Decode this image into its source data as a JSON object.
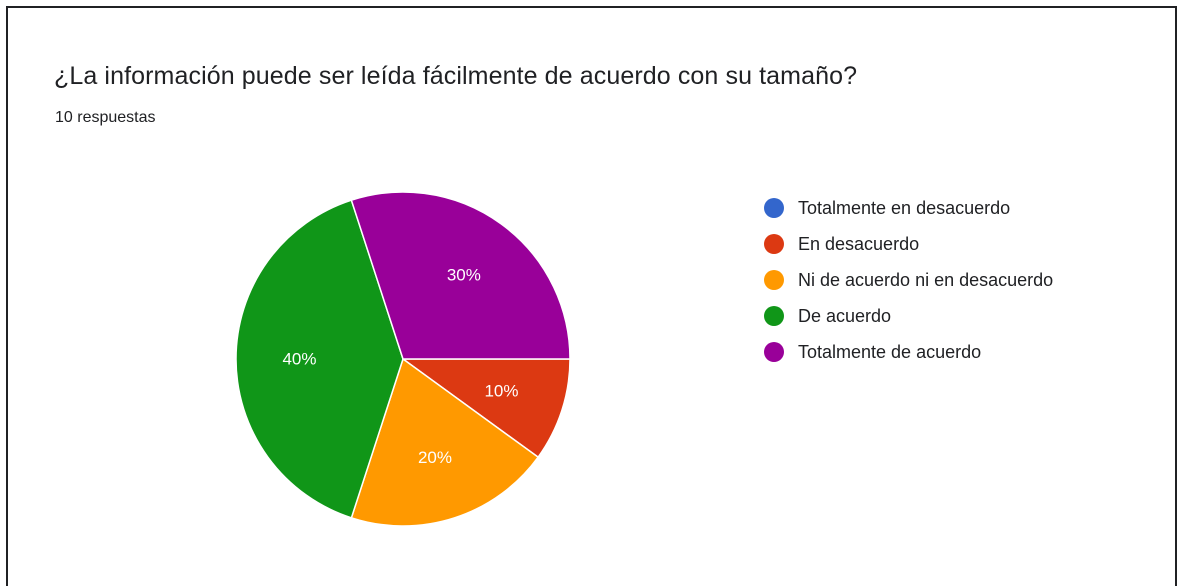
{
  "header": {
    "title": "¿La información puede ser leída fácilmente de acuerdo con su tamaño?",
    "responses": "10 respuestas"
  },
  "colors": {
    "totalmente_en_desacuerdo": "#3366cc",
    "en_desacuerdo": "#dc3912",
    "ni_de_acuerdo": "#ff9900",
    "de_acuerdo": "#109618",
    "totalmente_de_acuerdo": "#990099"
  },
  "chart_data": {
    "type": "pie",
    "title": "¿La información puede ser leída fácilmente de acuerdo con su tamaño?",
    "subtitle": "10 respuestas",
    "legend_position": "right",
    "categories": [
      "Totalmente en desacuerdo",
      "En desacuerdo",
      "Ni de acuerdo ni en desacuerdo",
      "De acuerdo",
      "Totalmente de acuerdo"
    ],
    "values": [
      0,
      10,
      20,
      40,
      30
    ],
    "labels": [
      "0%",
      "10%",
      "20%",
      "40%",
      "30%"
    ],
    "colors": [
      "#3366cc",
      "#dc3912",
      "#ff9900",
      "#109618",
      "#990099"
    ]
  }
}
